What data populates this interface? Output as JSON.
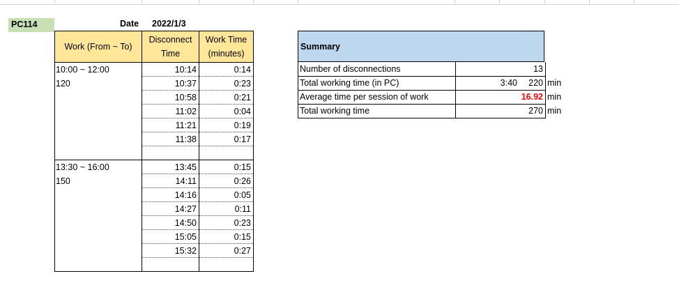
{
  "sheet": {
    "pc_label": "PC114",
    "date_label": "Date",
    "date_value": "2022/1/3"
  },
  "table": {
    "headers": {
      "work": "Work (From ~ To)",
      "disconnect": "Disconnect Time",
      "work_time": "Work Time (minutes)"
    },
    "sessions": [
      {
        "range": "10:00 ~ 12:00",
        "minutes": "120",
        "rows": [
          {
            "disconnect": "10:14",
            "work_time": "0:14"
          },
          {
            "disconnect": "10:37",
            "work_time": "0:23"
          },
          {
            "disconnect": "10:58",
            "work_time": "0:21"
          },
          {
            "disconnect": "11:02",
            "work_time": "0:04"
          },
          {
            "disconnect": "11:21",
            "work_time": "0:19"
          },
          {
            "disconnect": "11:38",
            "work_time": "0:17"
          },
          {
            "disconnect": "",
            "work_time": ""
          }
        ]
      },
      {
        "range": "13:30 ~ 16:00",
        "minutes": "150",
        "rows": [
          {
            "disconnect": "13:45",
            "work_time": "0:15"
          },
          {
            "disconnect": "14:11",
            "work_time": "0:26"
          },
          {
            "disconnect": "14:16",
            "work_time": "0:05"
          },
          {
            "disconnect": "14:27",
            "work_time": "0:11"
          },
          {
            "disconnect": "14:50",
            "work_time": "0:23"
          },
          {
            "disconnect": "15:05",
            "work_time": "0:15"
          },
          {
            "disconnect": "15:32",
            "work_time": "0:27"
          },
          {
            "disconnect": "",
            "work_time": ""
          }
        ]
      }
    ]
  },
  "summary": {
    "title": "Summary",
    "rows": [
      {
        "label": "Number of disconnections",
        "pc": "",
        "value": "13",
        "unit": ""
      },
      {
        "label": "Total working time (in PC)",
        "pc": "3:40",
        "value": "220",
        "unit": "min"
      },
      {
        "label": "Average time per session of work",
        "pc": "",
        "value": "16.92",
        "unit": "min",
        "highlight": true
      },
      {
        "label": "Total working time",
        "pc": "",
        "value": "270",
        "unit": "min"
      }
    ]
  },
  "colors": {
    "pc_label_bg": "#c6e0b4",
    "header_bg": "#ffe699",
    "summary_bg": "#bdd7ee",
    "highlight": "#ff0000"
  }
}
